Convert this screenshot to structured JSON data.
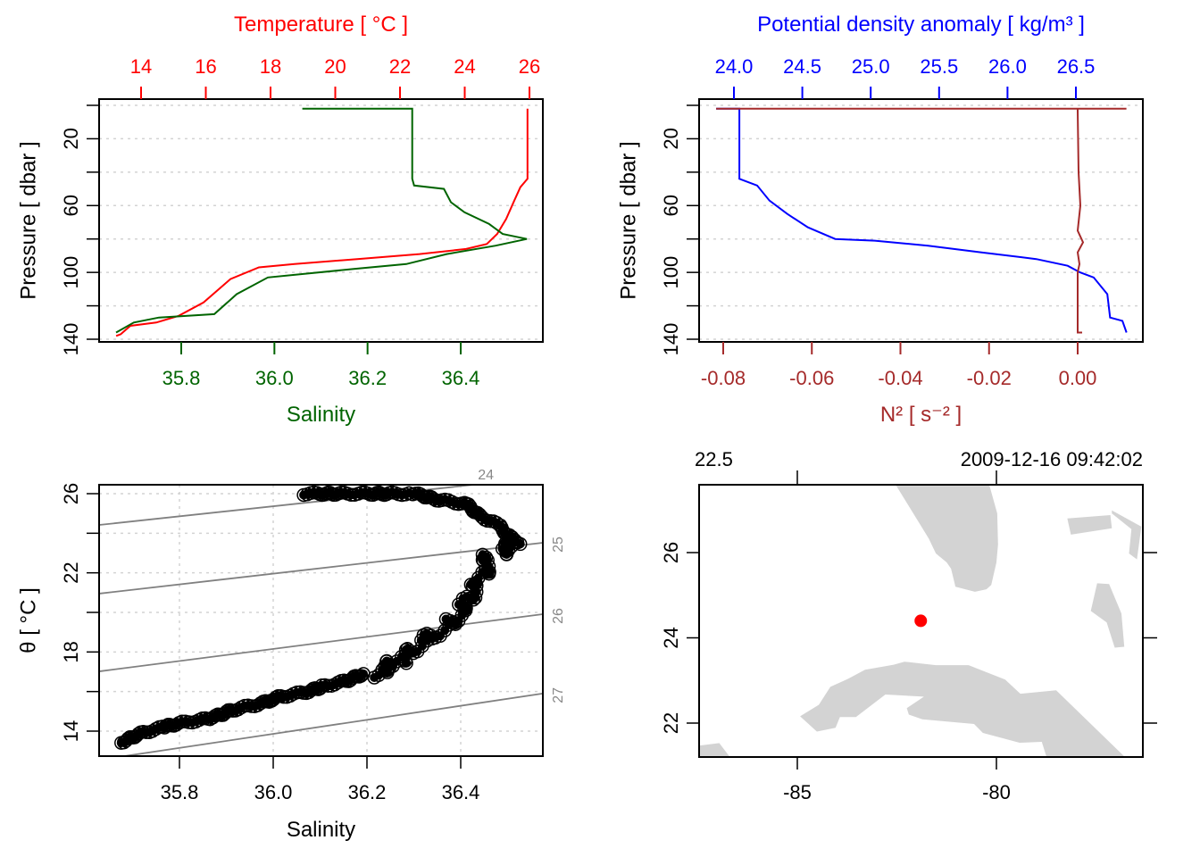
{
  "chart_data": [
    {
      "type": "line",
      "title": "",
      "ylabel": "Pressure [ dbar ]",
      "ylim": [
        0,
        140
      ],
      "yticks": [
        20,
        60,
        100,
        140
      ],
      "ygrid": [
        0,
        20,
        40,
        60,
        80,
        100,
        120,
        140
      ],
      "y_reversed": true,
      "top_axis": {
        "label": "Temperature [ °C ]",
        "color": "#ff0000",
        "ticks": [
          "14",
          "16",
          "18",
          "20",
          "22",
          "24",
          "26"
        ],
        "tick_values": [
          14,
          16,
          18,
          20,
          22,
          24,
          26
        ]
      },
      "bottom_axis": {
        "label": "Salinity",
        "color": "#006400",
        "ticks": [
          "35.8",
          "36.0",
          "36.2",
          "36.4"
        ],
        "tick_values": [
          35.8,
          36.0,
          36.2,
          36.4
        ]
      },
      "series": [
        {
          "name": "Temperature",
          "color": "#ff0000",
          "axis": "top",
          "points": [
            [
              25.94,
              2
            ],
            [
              25.94,
              44
            ],
            [
              25.72,
              49
            ],
            [
              25.53,
              57
            ],
            [
              25.28,
              68
            ],
            [
              25.0,
              77
            ],
            [
              24.68,
              83
            ],
            [
              24.04,
              86
            ],
            [
              22.6,
              89
            ],
            [
              20.68,
              92
            ],
            [
              18.74,
              95
            ],
            [
              17.64,
              97
            ],
            [
              16.76,
              104
            ],
            [
              15.93,
              118
            ],
            [
              15.16,
              126
            ],
            [
              14.47,
              130
            ],
            [
              13.67,
              132
            ],
            [
              13.37,
              137
            ],
            [
              13.23,
              138
            ]
          ]
        },
        {
          "name": "Salinity",
          "color": "#006400",
          "axis": "bottom",
          "points": [
            [
              36.06,
              2
            ],
            [
              36.296,
              2
            ],
            [
              36.296,
              44
            ],
            [
              36.3,
              48
            ],
            [
              36.364,
              50
            ],
            [
              36.379,
              58
            ],
            [
              36.408,
              64
            ],
            [
              36.461,
              71
            ],
            [
              36.49,
              77
            ],
            [
              36.542,
              80
            ],
            [
              36.475,
              84
            ],
            [
              36.37,
              89
            ],
            [
              36.283,
              95
            ],
            [
              36.168,
              98
            ],
            [
              35.986,
              103
            ],
            [
              35.919,
              113
            ],
            [
              35.871,
              125
            ],
            [
              35.752,
              127
            ],
            [
              35.698,
              130
            ],
            [
              35.66,
              136
            ]
          ]
        }
      ]
    },
    {
      "type": "line",
      "ylabel": "Pressure [ dbar ]",
      "ylim": [
        0,
        140
      ],
      "yticks": [
        20,
        60,
        100,
        140
      ],
      "ygrid": [
        0,
        20,
        40,
        60,
        80,
        100,
        120,
        140
      ],
      "y_reversed": true,
      "top_axis": {
        "label": "Potential density anomaly [ kg/m³ ]",
        "color": "#0000ff",
        "ticks": [
          "24.0",
          "24.5",
          "25.0",
          "25.5",
          "26.0",
          "26.5"
        ],
        "tick_values": [
          24.0,
          24.5,
          25.0,
          25.5,
          26.0,
          26.5
        ]
      },
      "bottom_axis": {
        "label": "N² [ s⁻² ]",
        "color": "#a52a2a",
        "ticks": [
          "-0.08",
          "-0.06",
          "-0.04",
          "-0.02",
          "0.00"
        ],
        "tick_values": [
          -0.08,
          -0.06,
          -0.04,
          -0.02,
          0.0
        ]
      },
      "series": [
        {
          "name": "Potential density anomaly",
          "color": "#0000ff",
          "axis": "top",
          "points": [
            [
              23.87,
              2
            ],
            [
              24.04,
              2
            ],
            [
              24.04,
              44
            ],
            [
              24.17,
              48
            ],
            [
              24.26,
              57
            ],
            [
              24.39,
              65
            ],
            [
              24.54,
              73
            ],
            [
              24.74,
              80
            ],
            [
              25.03,
              81
            ],
            [
              25.42,
              84
            ],
            [
              25.81,
              88
            ],
            [
              26.21,
              92
            ],
            [
              26.44,
              96
            ],
            [
              26.53,
              100
            ],
            [
              26.63,
              103
            ],
            [
              26.73,
              113
            ],
            [
              26.75,
              127
            ],
            [
              26.84,
              129
            ],
            [
              26.87,
              136
            ]
          ]
        },
        {
          "name": "N2",
          "color": "#a52a2a",
          "axis": "bottom",
          "points": [
            [
              -0.0816,
              2
            ],
            [
              0.011,
              2
            ],
            [
              0.0,
              2
            ],
            [
              0.0,
              3
            ],
            [
              0.0002,
              40
            ],
            [
              0.0006,
              60
            ],
            [
              0.0,
              75
            ],
            [
              0.0012,
              82
            ],
            [
              0.0,
              88
            ],
            [
              0.0004,
              95
            ],
            [
              0.0,
              100
            ],
            [
              0.0,
              136
            ],
            [
              0.001,
              136
            ]
          ]
        }
      ]
    },
    {
      "type": "scatter",
      "xlabel": "Salinity",
      "ylabel": "θ [ °C ]",
      "xlim": [
        35.629,
        36.575
      ],
      "ylim": [
        12.74,
        26.45
      ],
      "xticks": [
        "35.8",
        "36.0",
        "36.2",
        "36.4"
      ],
      "xtick_values": [
        35.8,
        36.0,
        36.2,
        36.4
      ],
      "yticks": [
        "14",
        "18",
        "22",
        "26"
      ],
      "ytick_values": [
        14,
        18,
        22,
        26
      ],
      "ygrid": [
        14,
        16,
        18,
        20,
        22,
        24,
        26
      ],
      "grid": true,
      "trace": [
        [
          36.065,
          26.0
        ],
        [
          36.293,
          26.0
        ],
        [
          36.408,
          25.46
        ],
        [
          36.484,
          24.33
        ],
        [
          36.531,
          23.43
        ],
        [
          36.465,
          22.98
        ],
        [
          36.427,
          21.62
        ],
        [
          36.398,
          20.27
        ],
        [
          36.37,
          19.37
        ],
        [
          36.331,
          18.47
        ],
        [
          36.284,
          17.57
        ],
        [
          36.198,
          16.89
        ],
        [
          36.103,
          16.21
        ],
        [
          35.989,
          15.54
        ],
        [
          35.855,
          14.63
        ],
        [
          35.76,
          14.18
        ],
        [
          35.665,
          13.41
        ]
      ],
      "isopycnals": [
        {
          "label": "24",
          "from": [
            35.629,
            24.42
          ],
          "to": [
            36.427,
            26.45
          ]
        },
        {
          "label": "25",
          "from": [
            35.629,
            20.95
          ],
          "to": [
            36.575,
            23.52
          ]
        },
        {
          "label": "26",
          "from": [
            35.629,
            17.02
          ],
          "to": [
            36.575,
            19.91
          ]
        },
        {
          "label": "27",
          "from": [
            35.684,
            12.74
          ],
          "to": [
            36.575,
            15.9
          ]
        }
      ]
    },
    {
      "type": "map",
      "top_left_label": "22.5",
      "top_right_label": "2009-12-16 09:42:02",
      "xlim": [
        -87.47,
        -76.32
      ],
      "ylim": [
        21.2,
        27.59
      ],
      "xticks": [
        "-85",
        "-80"
      ],
      "xtick_values": [
        -85,
        -80
      ],
      "yticks": [
        "22",
        "24",
        "26"
      ],
      "ytick_values": [
        22,
        24,
        26
      ],
      "station": {
        "lon": -81.9,
        "lat": 24.4,
        "color": "#ff0000"
      },
      "land_color": "#d3d3d3",
      "coastlines": [
        [
          [
            -82.53,
            27.59
          ],
          [
            -80.18,
            27.59
          ],
          [
            -79.98,
            26.92
          ],
          [
            -79.96,
            26.19
          ],
          [
            -80.0,
            25.77
          ],
          [
            -80.13,
            25.24
          ],
          [
            -80.25,
            25.14
          ],
          [
            -80.54,
            25.08
          ],
          [
            -81.03,
            25.2
          ],
          [
            -81.14,
            25.62
          ],
          [
            -81.25,
            25.77
          ],
          [
            -81.52,
            25.98
          ],
          [
            -81.7,
            26.33
          ]
        ],
        [
          [
            -78.22,
            26.8
          ],
          [
            -77.14,
            26.88
          ],
          [
            -77.1,
            26.57
          ],
          [
            -78.13,
            26.42
          ]
        ],
        [
          [
            -77.1,
            26.99
          ],
          [
            -76.36,
            26.61
          ],
          [
            -76.47,
            25.84
          ],
          [
            -76.67,
            25.98
          ],
          [
            -76.61,
            26.55
          ],
          [
            -77.1,
            26.92
          ]
        ],
        [
          [
            -77.47,
            25.28
          ],
          [
            -77.17,
            25.26
          ],
          [
            -76.86,
            24.57
          ],
          [
            -76.79,
            23.79
          ],
          [
            -77.03,
            23.77
          ],
          [
            -77.23,
            24.36
          ],
          [
            -77.63,
            24.63
          ]
        ],
        [
          [
            -84.93,
            22.16
          ],
          [
            -84.46,
            22.43
          ],
          [
            -84.17,
            22.85
          ],
          [
            -83.72,
            23.04
          ],
          [
            -83.3,
            23.25
          ],
          [
            -82.58,
            23.37
          ],
          [
            -82.31,
            23.44
          ],
          [
            -81.52,
            23.36
          ],
          [
            -80.7,
            23.36
          ],
          [
            -79.78,
            23.02
          ],
          [
            -79.4,
            22.69
          ],
          [
            -78.5,
            22.77
          ],
          [
            -76.77,
            21.2
          ],
          [
            -78.74,
            21.2
          ],
          [
            -78.86,
            21.56
          ],
          [
            -79.42,
            21.54
          ],
          [
            -80.34,
            21.77
          ],
          [
            -80.56,
            21.98
          ],
          [
            -81.86,
            22.09
          ],
          [
            -82.2,
            22.2
          ],
          [
            -82.25,
            22.35
          ],
          [
            -81.82,
            22.62
          ],
          [
            -82.79,
            22.67
          ],
          [
            -83.53,
            22.14
          ],
          [
            -83.93,
            22.14
          ],
          [
            -84.04,
            21.89
          ],
          [
            -84.51,
            21.8
          ]
        ],
        [
          [
            -87.47,
            21.47
          ],
          [
            -86.96,
            21.53
          ],
          [
            -86.69,
            21.2
          ],
          [
            -87.47,
            21.2
          ]
        ]
      ]
    }
  ]
}
